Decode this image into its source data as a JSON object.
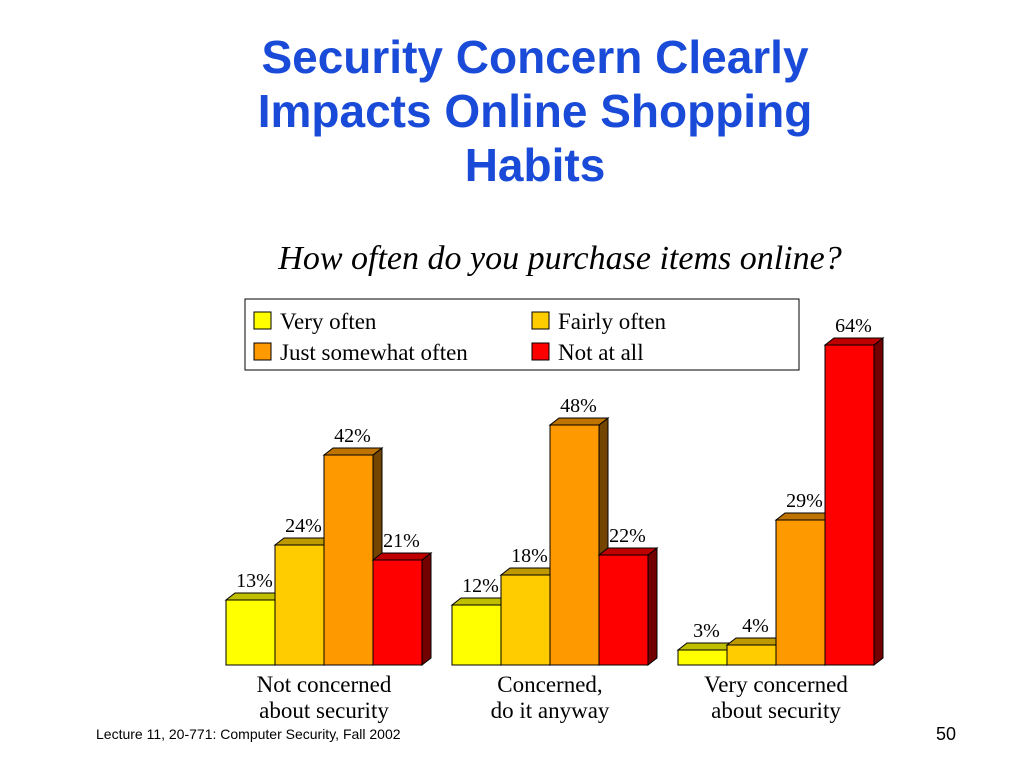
{
  "slide": {
    "title_lines": [
      "Security Concern Clearly",
      "Impacts Online Shopping",
      "Habits"
    ],
    "footer": "Lecture 11, 20-771: Computer Security,  Fall 2002",
    "page_number": "50"
  },
  "colors": {
    "title": "#1a4bd8",
    "very_often": "#ffff00",
    "fairly_often": "#ffcc00",
    "just_somewhat_often": "#ff9900",
    "not_at_all": "#ff0000"
  },
  "chart_data": {
    "type": "bar",
    "subtitle": "How often do you purchase items online?",
    "categories": [
      [
        "Not concerned",
        "about security"
      ],
      [
        "Concerned,",
        "do it anyway"
      ],
      [
        "Very concerned",
        "about security"
      ]
    ],
    "series": [
      {
        "name": "Very often",
        "values": [
          13,
          12,
          3
        ],
        "labels": [
          "13%",
          "12%",
          "3%"
        ],
        "color": "#ffff00"
      },
      {
        "name": "Fairly often",
        "values": [
          24,
          18,
          4
        ],
        "labels": [
          "24%",
          "18%",
          "4%"
        ],
        "color": "#ffcc00"
      },
      {
        "name": "Just somewhat often",
        "values": [
          42,
          48,
          29
        ],
        "labels": [
          "42%",
          "48%",
          "29%"
        ],
        "color": "#ff9900"
      },
      {
        "name": "Not at all",
        "values": [
          21,
          22,
          64
        ],
        "labels": [
          "21%",
          "22%",
          "64%"
        ],
        "color": "#ff0000"
      }
    ],
    "legend_position": "top",
    "style": "3d",
    "ylim": [
      0,
      64
    ]
  }
}
